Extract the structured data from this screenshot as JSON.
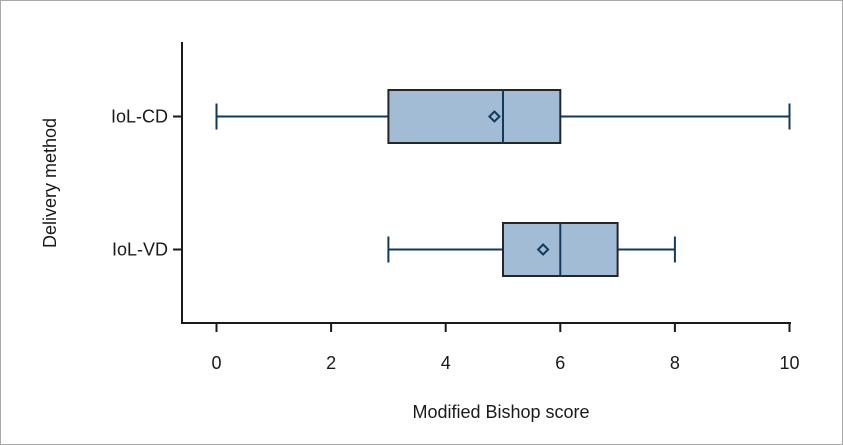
{
  "chart_data": {
    "type": "boxplot",
    "orientation": "horizontal",
    "title": "",
    "xlabel": "Modified Bishop score",
    "ylabel": "Delivery method",
    "xlim": [
      -0.6,
      10
    ],
    "xticks": [
      0,
      2,
      4,
      6,
      8,
      10
    ],
    "grid": false,
    "legend": "none",
    "colors": {
      "box_fill": "#a3bcd6",
      "box_edge": "#262626",
      "whisker": "#123a5c",
      "median": "#123a5c",
      "mean_marker": "#123a5c",
      "axis": "#1a1a1a"
    },
    "categories": [
      "IoL-CD",
      "IoL-VD"
    ],
    "series": [
      {
        "category": "IoL-CD",
        "min": 0,
        "q1": 3,
        "median": 5,
        "q3": 6,
        "max": 10,
        "mean": 4.85
      },
      {
        "category": "IoL-VD",
        "min": 3,
        "q1": 5,
        "median": 6,
        "q3": 7,
        "max": 8,
        "mean": 5.7
      }
    ]
  }
}
